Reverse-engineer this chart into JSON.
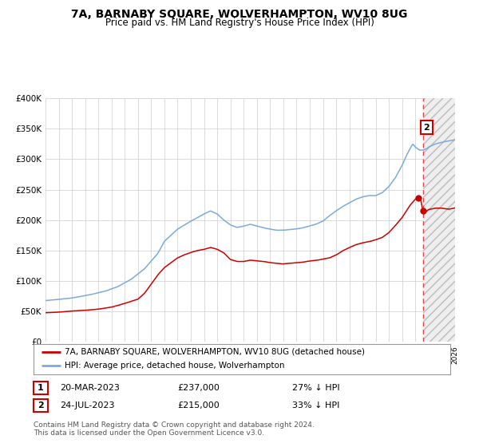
{
  "title": "7A, BARNABY SQUARE, WOLVERHAMPTON, WV10 8UG",
  "subtitle": "Price paid vs. HM Land Registry's House Price Index (HPI)",
  "legend_label_red": "7A, BARNABY SQUARE, WOLVERHAMPTON, WV10 8UG (detached house)",
  "legend_label_blue": "HPI: Average price, detached house, Wolverhampton",
  "annotation1_date": "20-MAR-2023",
  "annotation1_price": "£237,000",
  "annotation1_pct": "27% ↓ HPI",
  "annotation2_date": "24-JUL-2023",
  "annotation2_price": "£215,000",
  "annotation2_pct": "33% ↓ HPI",
  "footer": "Contains HM Land Registry data © Crown copyright and database right 2024.\nThis data is licensed under the Open Government Licence v3.0.",
  "sale1_date_num": 2023.22,
  "sale1_price": 237000,
  "sale2_date_num": 2023.56,
  "sale2_price": 215000,
  "ylim": [
    0,
    400000
  ],
  "xlim_start": 1995.0,
  "xlim_end": 2026.0,
  "background_color": "#ffffff",
  "grid_color": "#cccccc",
  "red_color": "#cc0000",
  "blue_color": "#7aabdb",
  "dashed_line_color": "#dd4444",
  "hatch_facecolor": "#eeeeee",
  "hatch_edgecolor": "#bbbbbb",
  "blue_anchors_t": [
    1995.0,
    1996.0,
    1997.0,
    1997.5,
    1998.5,
    1999.5,
    2000.5,
    2001.5,
    2002.5,
    2003.5,
    2004.0,
    2005.0,
    2006.0,
    2007.0,
    2007.5,
    2008.0,
    2008.5,
    2009.0,
    2009.5,
    2010.0,
    2010.5,
    2011.0,
    2011.5,
    2012.0,
    2012.5,
    2013.0,
    2013.5,
    2014.0,
    2014.5,
    2015.0,
    2015.5,
    2016.0,
    2016.5,
    2017.0,
    2017.5,
    2018.0,
    2018.5,
    2019.0,
    2019.5,
    2020.0,
    2020.5,
    2021.0,
    2021.5,
    2022.0,
    2022.3,
    2022.6,
    2022.8,
    2023.0,
    2023.3,
    2023.6,
    2023.9,
    2024.0,
    2024.5,
    2025.0,
    2025.5,
    2026.0
  ],
  "blue_anchors_p": [
    68000,
    70000,
    72000,
    74000,
    78000,
    83000,
    91000,
    103000,
    120000,
    145000,
    165000,
    185000,
    198000,
    210000,
    215000,
    210000,
    200000,
    192000,
    188000,
    190000,
    193000,
    190000,
    187000,
    185000,
    183000,
    183000,
    184000,
    185000,
    187000,
    190000,
    193000,
    198000,
    207000,
    215000,
    222000,
    228000,
    234000,
    238000,
    240000,
    240000,
    245000,
    255000,
    270000,
    290000,
    305000,
    318000,
    325000,
    320000,
    315000,
    315000,
    318000,
    320000,
    325000,
    328000,
    330000,
    332000
  ],
  "red_anchors_t": [
    1995.0,
    1996.0,
    1997.0,
    1998.0,
    1999.0,
    2000.0,
    2001.0,
    2002.0,
    2002.5,
    2003.0,
    2003.5,
    2004.0,
    2004.5,
    2005.0,
    2005.5,
    2006.0,
    2006.5,
    2007.0,
    2007.5,
    2008.0,
    2008.5,
    2009.0,
    2009.5,
    2010.0,
    2010.5,
    2011.0,
    2011.5,
    2012.0,
    2012.5,
    2013.0,
    2013.5,
    2014.0,
    2014.5,
    2015.0,
    2015.5,
    2016.0,
    2016.5,
    2017.0,
    2017.5,
    2018.0,
    2018.5,
    2019.0,
    2019.5,
    2020.0,
    2020.5,
    2021.0,
    2021.5,
    2022.0,
    2022.3,
    2022.6,
    2023.0,
    2023.22,
    2023.4,
    2023.56,
    2023.7,
    2024.0,
    2024.5,
    2025.0,
    2025.5,
    2026.0
  ],
  "red_anchors_p": [
    48000,
    49000,
    51000,
    52000,
    54000,
    57000,
    63000,
    70000,
    80000,
    95000,
    110000,
    122000,
    130000,
    138000,
    143000,
    147000,
    150000,
    152000,
    155000,
    152000,
    146000,
    135000,
    132000,
    132000,
    134000,
    133000,
    132000,
    130000,
    129000,
    128000,
    129000,
    130000,
    131000,
    133000,
    134000,
    136000,
    138000,
    143000,
    150000,
    155000,
    160000,
    163000,
    165000,
    168000,
    172000,
    180000,
    192000,
    205000,
    215000,
    225000,
    235000,
    237000,
    235000,
    215000,
    213000,
    218000,
    220000,
    220000,
    218000,
    220000
  ]
}
